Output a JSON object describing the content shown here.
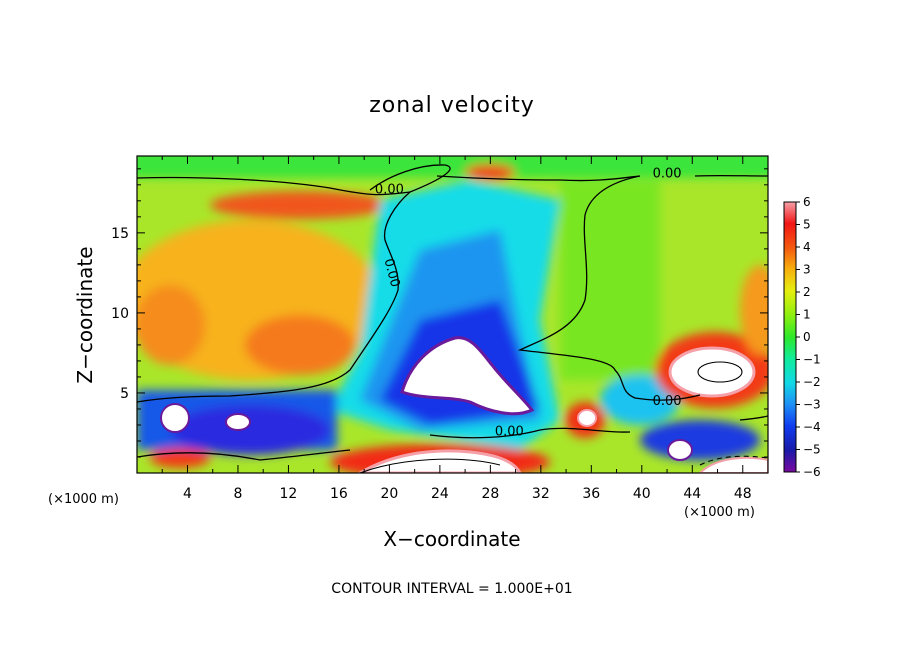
{
  "chart_data": {
    "type": "heatmap",
    "title": "zonal velocity",
    "xlabel": "X−coordinate",
    "ylabel": "Z−coordinate",
    "x_unit": "(×1000 m)",
    "y_unit": "(×1000 m)",
    "xlim": [
      0,
      50
    ],
    "ylim": [
      0,
      19.8
    ],
    "x_ticks": [
      "4",
      "8",
      "12",
      "16",
      "20",
      "24",
      "28",
      "32",
      "36",
      "40",
      "44",
      "48"
    ],
    "y_ticks": [
      "5",
      "10",
      "15"
    ],
    "colorbar": {
      "min": -6,
      "max": 6,
      "ticks": [
        "6",
        "5",
        "4",
        "3",
        "2",
        "1",
        "0",
        "−1",
        "−2",
        "−3",
        "−4",
        "−5",
        "−6"
      ]
    },
    "contour_labels": [
      {
        "text": "0.00",
        "x": 20.0,
        "y": 17.7
      },
      {
        "text": "0.00",
        "x": 42.0,
        "y": 18.7
      },
      {
        "text": "0.00",
        "x": 20.2,
        "y": 12.5
      },
      {
        "text": "0.00",
        "x": 42.0,
        "y": 4.5
      },
      {
        "text": "0.00",
        "x": 29.5,
        "y": 2.6
      }
    ],
    "field_features": [
      {
        "desc": "strong negative jet core (white, < -6)",
        "x": 26.0,
        "y": 5.5
      },
      {
        "desc": "strong positive core (white, > 6)",
        "x": 45.5,
        "y": 6.5
      },
      {
        "desc": "near-surface positive core",
        "x": 26.0,
        "y": 0.8
      },
      {
        "desc": "negative pocket",
        "x": 3.0,
        "y": 3.5
      },
      {
        "desc": "negative pocket",
        "x": 10.0,
        "y": 2.8
      }
    ],
    "contour_interval_text": "CONTOUR INTERVAL =  1.000E+01"
  }
}
